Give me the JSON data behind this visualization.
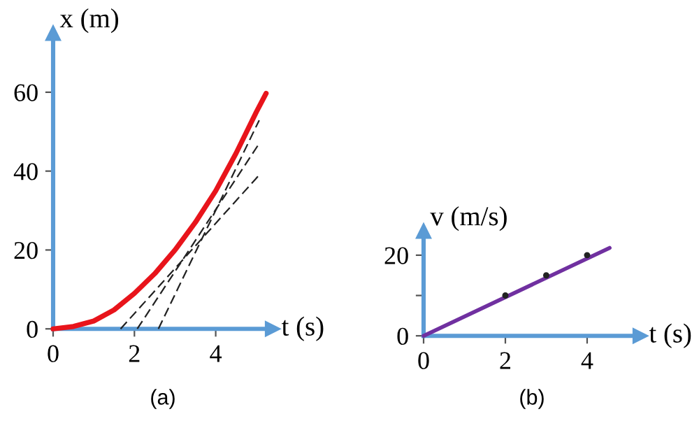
{
  "chart_data": [
    {
      "type": "line",
      "xlabel": "t (s)",
      "ylabel": "x (m)",
      "xlim": [
        0,
        5.4
      ],
      "ylim": [
        0,
        75
      ],
      "xticks": [
        0,
        2,
        4
      ],
      "yticks": [
        0,
        20,
        40,
        60
      ],
      "grid": false,
      "legend": false,
      "marker": "none",
      "annotations": [
        "(a)"
      ],
      "series": [
        {
          "color": "#e8141b",
          "line_style": "solid",
          "x": [
            0,
            0.5,
            1,
            1.5,
            2,
            2.5,
            3,
            3.5,
            4,
            4.5,
            5,
            5.24
          ],
          "values": [
            0,
            0.6,
            2,
            4.8,
            9,
            14,
            20,
            27,
            35,
            44.5,
            55,
            59.7
          ]
        },
        {
          "color": "#222222",
          "line_style": "dashed",
          "x": [
            1.66,
            5.07
          ],
          "values": [
            0,
            39
          ]
        },
        {
          "color": "#222222",
          "line_style": "dashed",
          "x": [
            2.07,
            5.07
          ],
          "values": [
            0,
            47
          ]
        },
        {
          "color": "#222222",
          "line_style": "dashed",
          "x": [
            2.59,
            5.07
          ],
          "values": [
            0,
            52.9
          ]
        }
      ]
    },
    {
      "type": "line",
      "xlabel": "t (s)",
      "ylabel": "v (m/s)",
      "xlim": [
        0,
        5.3
      ],
      "ylim": [
        0,
        26
      ],
      "xticks": [
        0,
        2,
        4
      ],
      "yticks": [
        0,
        {
          "value": 10,
          "label": null
        },
        20
      ],
      "grid": false,
      "legend": false,
      "annotations": [
        "(b)"
      ],
      "series": [
        {
          "color": "#7030a0",
          "line_style": "solid",
          "marker": "none",
          "x": [
            0,
            4.55
          ],
          "values": [
            0,
            21.8
          ]
        },
        {
          "type": "scatter",
          "color": "#222222",
          "marker": "circle",
          "x": [
            2,
            3,
            4
          ],
          "values": [
            10,
            15,
            20
          ]
        }
      ]
    }
  ]
}
